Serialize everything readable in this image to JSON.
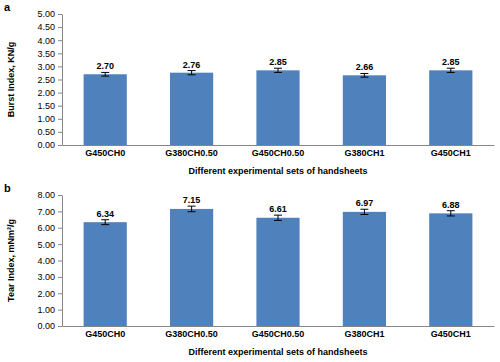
{
  "chart_data": [
    {
      "type": "bar",
      "title": "a",
      "x_label": "Different experimental sets of handsheets",
      "y_label": "Burst Index, KN/g",
      "categories": [
        "G450CH0",
        "G380CH0.50",
        "G450CH0.50",
        "G380CH1",
        "G450CH1"
      ],
      "values": [
        2.7,
        2.76,
        2.85,
        2.66,
        2.85
      ],
      "value_labels": [
        "2.70",
        "2.76",
        "2.85",
        "2.66",
        "2.85"
      ],
      "errors": [
        0.07,
        0.08,
        0.08,
        0.07,
        0.08
      ],
      "color": "#4f81bd",
      "data_labels": true,
      "grid": false,
      "ylim": [
        0,
        5
      ],
      "yticks": [
        {
          "value": 0,
          "label": "0.00"
        },
        {
          "value": 0.5,
          "label": "0.50"
        },
        {
          "value": 1,
          "label": "1.00"
        },
        {
          "value": 1.5,
          "label": "1.50"
        },
        {
          "value": 2,
          "label": "2.00"
        },
        {
          "value": 2.5,
          "label": "2.50"
        },
        {
          "value": 3,
          "label": "3.00"
        },
        {
          "value": 3.5,
          "label": "3.50"
        },
        {
          "value": 4,
          "label": "4.00"
        },
        {
          "value": 4.5,
          "label": "4.50"
        },
        {
          "value": 5,
          "label": "5.00"
        }
      ]
    },
    {
      "type": "bar",
      "title": "b",
      "x_label": "Different experimental sets of handsheets",
      "y_label": "Tear Index, mNm²/g",
      "categories": [
        "G450CH0",
        "G380CH0.50",
        "G450CH0.50",
        "G380CH1",
        "G450CH1"
      ],
      "values": [
        6.34,
        7.15,
        6.61,
        6.97,
        6.88
      ],
      "value_labels": [
        "6.34",
        "7.15",
        "6.61",
        "6.97",
        "6.88"
      ],
      "errors": [
        0.15,
        0.17,
        0.16,
        0.16,
        0.16
      ],
      "color": "#4f81bd",
      "data_labels": true,
      "grid": false,
      "ylim": [
        0,
        8
      ],
      "yticks": [
        {
          "value": 0,
          "label": "0.00"
        },
        {
          "value": 1,
          "label": "1.00"
        },
        {
          "value": 2,
          "label": "2.00"
        },
        {
          "value": 3,
          "label": "3.00"
        },
        {
          "value": 4,
          "label": "4.00"
        },
        {
          "value": 5,
          "label": "5.00"
        },
        {
          "value": 6,
          "label": "6.00"
        },
        {
          "value": 7,
          "label": "7.00"
        },
        {
          "value": 8,
          "label": "8.00"
        }
      ]
    }
  ]
}
